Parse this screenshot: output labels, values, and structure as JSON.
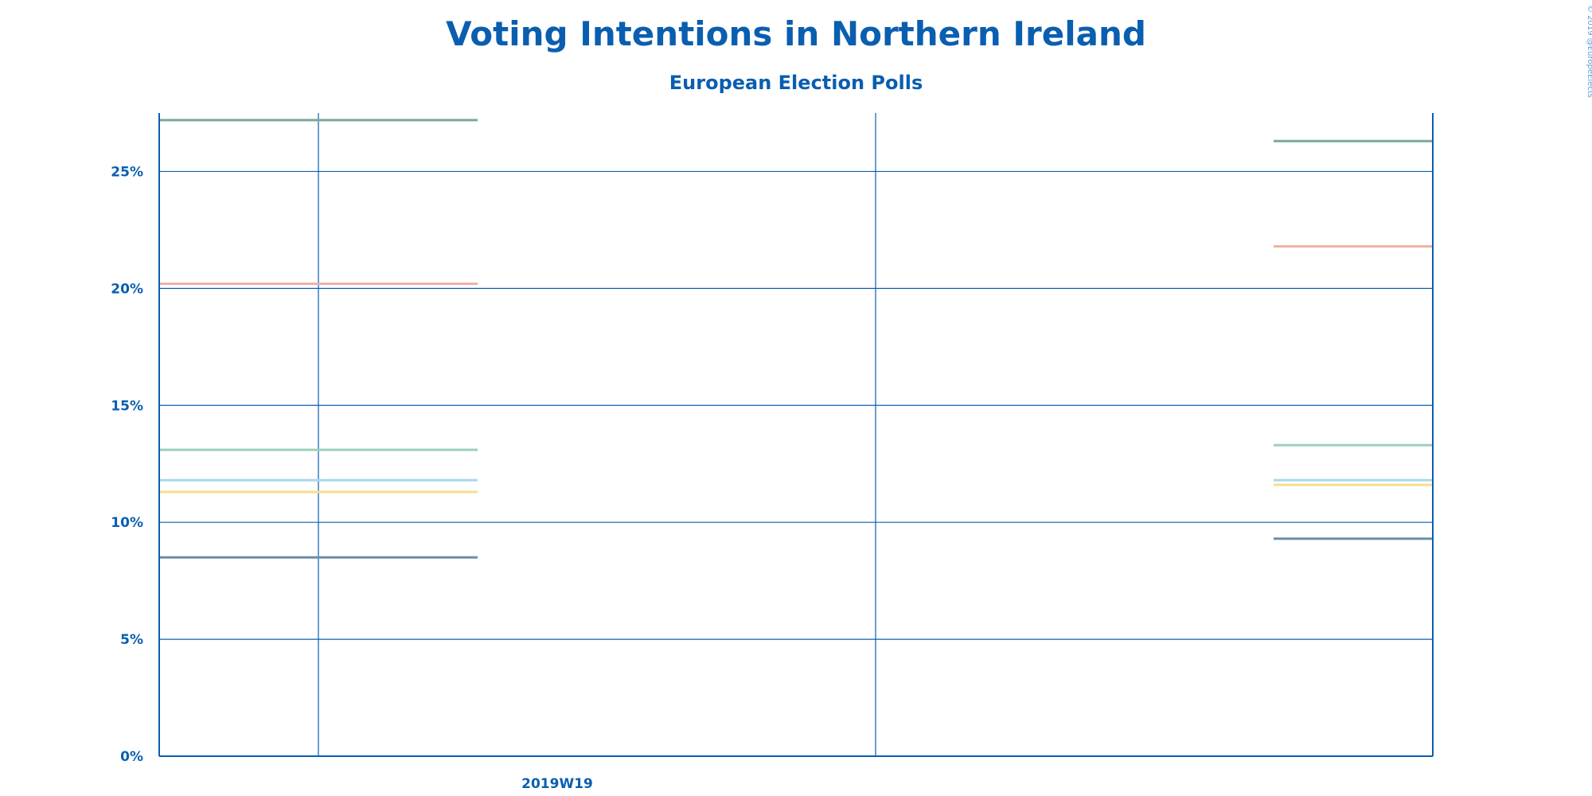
{
  "title": "Voting Intentions in Northern Ireland",
  "subtitle": "European Election Polls",
  "copyright": "© 2019 @EuropeElects",
  "chart_data": {
    "type": "line",
    "title": "Voting Intentions in Northern Ireland",
    "subtitle": "European Election Polls",
    "xlabel": "",
    "ylabel": "",
    "ylim": [
      0,
      27.5
    ],
    "yticks": [
      0,
      5,
      10,
      15,
      20,
      25
    ],
    "ytick_labels": [
      "0%",
      "5%",
      "10%",
      "15%",
      "20%",
      "25%"
    ],
    "x_tick_labels": [
      "2019W19"
    ],
    "grid": true,
    "legend": "none",
    "series": [
      {
        "color": "#7aa89c",
        "values": [
          27.2,
          26.3
        ]
      },
      {
        "color": "#efb2a5",
        "values": [
          20.2,
          21.8
        ]
      },
      {
        "color": "#9ccfb8",
        "values": [
          13.1,
          13.3
        ]
      },
      {
        "color": "#a8d8ee",
        "values": [
          11.8,
          11.8
        ]
      },
      {
        "color": "#f6df8c",
        "values": [
          11.3,
          11.6
        ]
      },
      {
        "color": "#6b8fa8",
        "values": [
          8.5,
          9.3
        ]
      }
    ],
    "accent_color": "#0a5eb0"
  }
}
